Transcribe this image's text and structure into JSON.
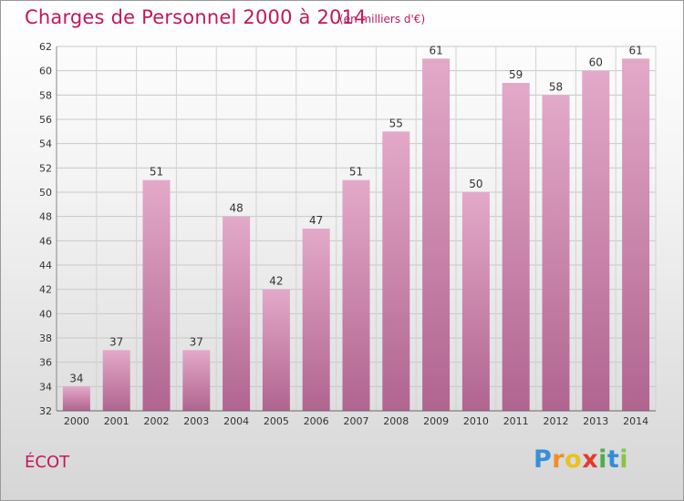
{
  "chart_data": {
    "type": "bar",
    "title": "Charges de Personnel 2000 à 2014",
    "subtitle": "(en milliers d'€)",
    "categories": [
      "2000",
      "2001",
      "2002",
      "2003",
      "2004",
      "2005",
      "2006",
      "2007",
      "2008",
      "2009",
      "2010",
      "2011",
      "2012",
      "2013",
      "2014"
    ],
    "values": [
      34,
      37,
      51,
      37,
      48,
      42,
      47,
      51,
      55,
      61,
      50,
      59,
      58,
      60,
      61
    ],
    "ylim": [
      32,
      62
    ],
    "yticks": [
      32,
      34,
      36,
      38,
      40,
      42,
      44,
      46,
      48,
      50,
      52,
      54,
      56,
      58,
      60,
      62
    ],
    "grid": true,
    "bar_color": "#d98cb6",
    "xlabel": "",
    "ylabel": ""
  },
  "commune": "ÉCOT",
  "logo": {
    "letters": [
      "P",
      "r",
      "o",
      "x",
      "i",
      "t",
      "i"
    ],
    "colors": [
      "#3a8ed8",
      "#f28c28",
      "#e8c21f",
      "#e23b2e",
      "#4caf50",
      "#2f8fd6",
      "#8bc34a"
    ]
  },
  "colors": {
    "title": "#c2185b"
  }
}
